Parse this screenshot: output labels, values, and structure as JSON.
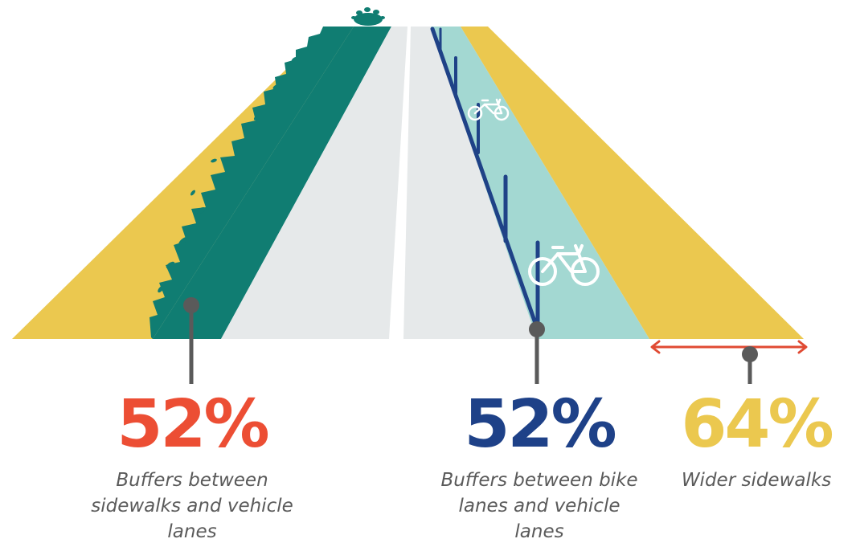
{
  "colors": {
    "sidewalk": "#EBC84F",
    "greenery": "#107D72",
    "road": "#E6E9EA",
    "bike_lane": "#A3D8D2",
    "bollard": "#1F4287",
    "pin": "#5a5a5a",
    "arrow": "#E04A33",
    "stat_sidewalk_buffer": "#EC4E34",
    "stat_bike_buffer": "#1E4188",
    "stat_wider_sidewalks": "#EBC84F"
  },
  "stats": [
    {
      "value": "52%",
      "caption": "Buffers between sidewalks and vehicle lanes"
    },
    {
      "value": "52%",
      "caption": "Buffers between bike lanes and vehicle lanes"
    },
    {
      "value": "64%",
      "caption": "Wider sidewalks"
    }
  ],
  "icons": [
    "bicycle-icon",
    "plant-icon",
    "bollard-icon",
    "map-pin-icon",
    "double-arrow-icon"
  ]
}
